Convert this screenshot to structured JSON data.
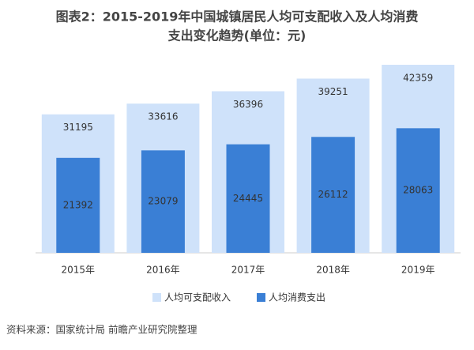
{
  "chart_data": {
    "type": "overlap-bar",
    "title": [
      "图表2：2015-2019年中国城镇居民人均可支配收入及人均消费",
      "支出变化趋势(单位：元)"
    ],
    "categories": [
      "2015年",
      "2016年",
      "2017年",
      "2018年",
      "2019年"
    ],
    "series": [
      {
        "name": "人均可支配收入",
        "color": "#cfe2fa",
        "values": [
          31195,
          33616,
          36396,
          39251,
          42359
        ]
      },
      {
        "name": "人均消费支出",
        "color": "#3a7fd5",
        "values": [
          21392,
          23079,
          24445,
          26112,
          28063
        ]
      }
    ],
    "source": "资料来源：国家统计局 前瞻产业研究院整理"
  }
}
